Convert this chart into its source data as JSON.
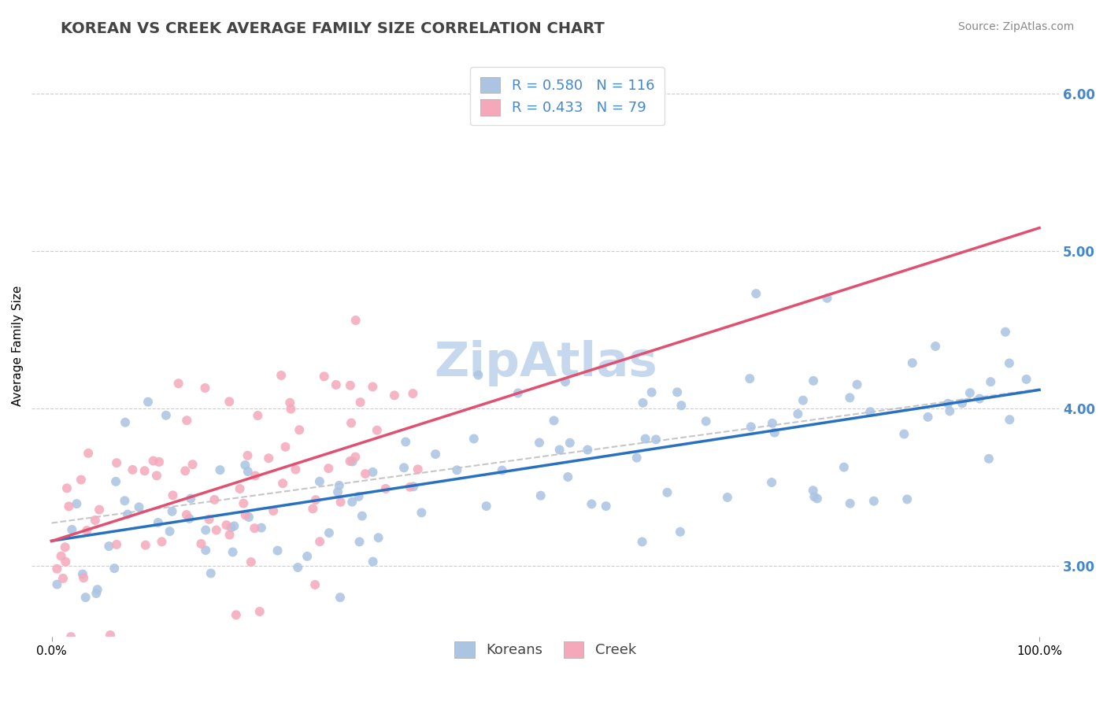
{
  "title": "KOREAN VS CREEK AVERAGE FAMILY SIZE CORRELATION CHART",
  "source": "Source: ZipAtlas.com",
  "ylabel": "Average Family Size",
  "x_tick_labels": [
    "0.0%",
    "100.0%"
  ],
  "y_ticks": [
    3.0,
    4.0,
    5.0,
    6.0
  ],
  "korean_R": 0.58,
  "korean_N": 116,
  "creek_R": 0.433,
  "creek_N": 79,
  "korean_color": "#aac4e2",
  "creek_color": "#f5a8ba",
  "korean_line_color": "#2870c0",
  "creek_line_color": "#e05070",
  "trend_line_color": "#b8b8b8",
  "watermark_color": "#c5d8ed",
  "legend_korean_fill": "#aac4e2",
  "legend_creek_fill": "#f5a8ba",
  "title_fontsize": 14,
  "axis_label_fontsize": 11,
  "tick_fontsize": 11,
  "legend_fontsize": 13,
  "source_fontsize": 10,
  "background_color": "#ffffff",
  "grid_color": "#cccccc",
  "right_tick_color": "#4488cc",
  "legend_label_color": "#333333",
  "legend_value_color": "#4488cc"
}
